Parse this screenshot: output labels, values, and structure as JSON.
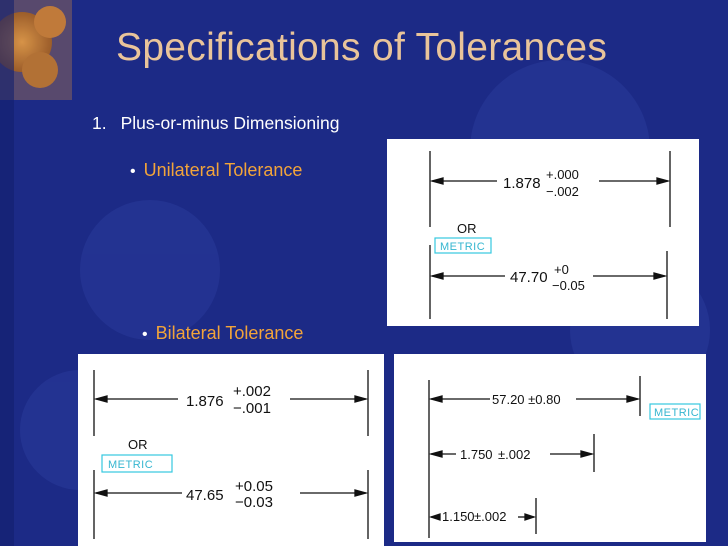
{
  "slide": {
    "title": "Specifications of Tolerances",
    "point_number": "1.",
    "point_text": "Plus-or-minus Dimensioning",
    "bullet_1": "Unilateral Tolerance",
    "bullet_2": "Bilateral Tolerance",
    "bullet_symbol": "•"
  },
  "unilateral_panel": {
    "inch_value": "1.878",
    "inch_plus": "+.000",
    "inch_minus": "−.002",
    "or_label": "OR",
    "metric_label": "METRIC",
    "metric_value": "47.70",
    "metric_plus": "+0",
    "metric_minus": "−0.05"
  },
  "bilateral_panel": {
    "inch_value": "1.876",
    "inch_plus": "+.002",
    "inch_minus": "−.001",
    "or_label": "OR",
    "metric_label": "METRIC",
    "metric_value": "47.65",
    "metric_plus": "+0.05",
    "metric_minus": "−0.03"
  },
  "equal_bilateral_panel": {
    "metric_dim": "57.20 ±0.80",
    "metric_label": "METRIC",
    "inch_dim_1_value": "1.750",
    "inch_dim_1_tol": "±.002",
    "inch_dim_2_value": "1.150",
    "inch_dim_2_tol": "±.002"
  },
  "colors": {
    "background": "#1c2a86",
    "title": "#e9c49a",
    "bullet_text": "#f2a43a",
    "metric_box": "#35c8e0"
  }
}
